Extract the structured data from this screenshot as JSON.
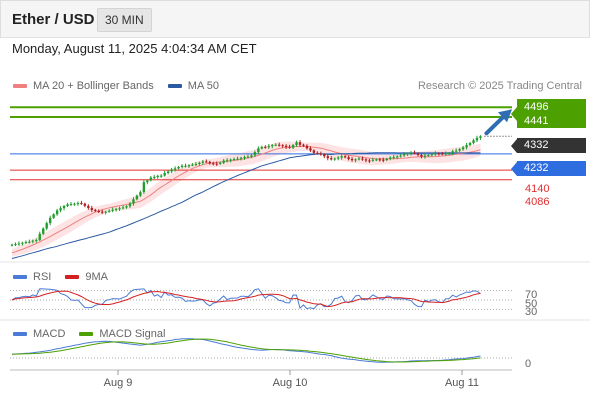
{
  "header": {
    "title": "Ether / USD",
    "timeframe": "30 MIN"
  },
  "datetime": "Monday, August 11, 2025 4:04:34 AM CET",
  "legend": {
    "ma20_label": "MA 20 + Bollinger Bands",
    "ma50_label": "MA 50",
    "research": "Research © 2025 Trading Central"
  },
  "indicators": {
    "rsi_label": "RSI",
    "rsi_ma_label": "9MA",
    "macd_label": "MACD",
    "macd_signal_label": "MACD Signal",
    "rsi_levels": [
      "70",
      "50",
      "30"
    ],
    "macd_zero": "0"
  },
  "colors": {
    "candle_up": "#1f9d2e",
    "candle_down": "#b01e1e",
    "ma20": "#f08080",
    "ma50": "#2b5aa3",
    "bollinger_fill": "#fde3e3",
    "resistance": "#4ca000",
    "pivot": "#2e6de0",
    "support": "#e23030",
    "last_price": "#333333",
    "rsi": "#4a7bd6",
    "rsi_ma": "#d42020",
    "macd": "#4a7bd6",
    "macd_signal": "#4ca000"
  },
  "chart_data": {
    "type": "candlestick",
    "title": "Ether / USD",
    "interval": "30 MIN",
    "y_range": [
      3620,
      4560
    ],
    "x_range": [
      "Aug 8 17:00",
      "Aug 11 05:30"
    ],
    "x_ticks": [
      "Aug 9",
      "Aug 10",
      "Aug 11"
    ],
    "x_tick_positions": [
      28,
      76,
      124
    ],
    "levels": {
      "resistance": [
        4496,
        4441
      ],
      "pivot": 4232,
      "support": [
        4140,
        4086
      ],
      "last_price": 4332
    },
    "close_prices": [
      3718,
      3722,
      3725,
      3729,
      3733,
      3735,
      3741,
      3744,
      3780,
      3810,
      3840,
      3870,
      3890,
      3912,
      3925,
      3937,
      3946,
      3948,
      3950,
      3954,
      3950,
      3938,
      3926,
      3915,
      3909,
      3905,
      3901,
      3905,
      3910,
      3916,
      3921,
      3924,
      3929,
      3936,
      3951,
      3975,
      3996,
      4016,
      4072,
      4082,
      4098,
      4101,
      4108,
      4109,
      4124,
      4133,
      4144,
      4150,
      4158,
      4165,
      4165,
      4168,
      4171,
      4175,
      4182,
      4189,
      4187,
      4179,
      4177,
      4176,
      4182,
      4194,
      4196,
      4200,
      4203,
      4205,
      4210,
      4214,
      4216,
      4224,
      4242,
      4263,
      4272,
      4270,
      4276,
      4282,
      4284,
      4281,
      4278,
      4272,
      4267,
      4282,
      4298,
      4284,
      4278,
      4264,
      4252,
      4238,
      4233,
      4230,
      4219,
      4208,
      4201,
      4206,
      4211,
      4219,
      4213,
      4203,
      4197,
      4201,
      4206,
      4201,
      4195,
      4193,
      4199,
      4201,
      4199,
      4197,
      4204,
      4211,
      4214,
      4218,
      4223,
      4230,
      4235,
      4239,
      4235,
      4226,
      4217,
      4223,
      4225,
      4230,
      4235,
      4234,
      4230,
      4234,
      4237,
      4247,
      4251,
      4259,
      4269,
      4282,
      4294,
      4309,
      4323,
      4332
    ],
    "ma20": [
      3672,
      3678,
      3685,
      3692,
      3700,
      3708,
      3716,
      3725,
      3734,
      3744,
      3754,
      3764,
      3775,
      3786,
      3797,
      3808,
      3819,
      3830,
      3842,
      3853,
      3864,
      3874,
      3884,
      3893,
      3902,
      3909,
      3916,
      3922,
      3927,
      3931,
      3935,
      3939,
      3942,
      3946,
      3950,
      3954,
      3959,
      3964,
      3975,
      3988,
      4000,
      4015,
      4031,
      4044,
      4056,
      4069,
      4081,
      4095,
      4107,
      4118,
      4129,
      4140,
      4150,
      4157,
      4165,
      4171,
      4176,
      4179,
      4181,
      4184,
      4186,
      4188,
      4191,
      4193,
      4195,
      4198,
      4201,
      4205,
      4209,
      4212,
      4218,
      4224,
      4230,
      4237,
      4245,
      4252,
      4258,
      4263,
      4266,
      4269,
      4271,
      4272,
      4274,
      4274,
      4274,
      4274,
      4272,
      4270,
      4267,
      4264,
      4260,
      4254,
      4249,
      4243,
      4238,
      4232,
      4228,
      4224,
      4222,
      4220,
      4216,
      4213,
      4210,
      4208,
      4206,
      4205,
      4204,
      4204,
      4205,
      4205,
      4205,
      4206,
      4207,
      4208,
      4210,
      4213,
      4214,
      4215,
      4215,
      4215,
      4216,
      4216,
      4217,
      4218,
      4220,
      4222,
      4224,
      4227,
      4230,
      4232,
      4233,
      4237,
      4241,
      4245,
      4250,
      4255
    ],
    "ma50": [
      3640,
      3645,
      3650,
      3655,
      3661,
      3667,
      3672,
      3677,
      3683,
      3689,
      3695,
      3700,
      3704,
      3709,
      3715,
      3720,
      3726,
      3731,
      3736,
      3742,
      3747,
      3751,
      3757,
      3762,
      3767,
      3773,
      3778,
      3783,
      3789,
      3796,
      3804,
      3811,
      3818,
      3825,
      3833,
      3841,
      3849,
      3857,
      3865,
      3873,
      3882,
      3890,
      3899,
      3908,
      3916,
      3924,
      3933,
      3941,
      3950,
      3958,
      3968,
      3979,
      3990,
      4000,
      4008,
      4017,
      4027,
      4037,
      4047,
      4056,
      4066,
      4075,
      4083,
      4092,
      4101,
      4110,
      4117,
      4125,
      4133,
      4141,
      4149,
      4157,
      4165,
      4170,
      4176,
      4181,
      4187,
      4193,
      4198,
      4204,
      4210,
      4213,
      4217,
      4219,
      4222,
      4224,
      4227,
      4229,
      4232,
      4233,
      4230,
      4230,
      4229,
      4231,
      4233,
      4233,
      4233,
      4233,
      4234,
      4235,
      4236,
      4236,
      4236,
      4237,
      4238,
      4239,
      4239,
      4239,
      4239,
      4239,
      4239,
      4238,
      4238,
      4238,
      4238,
      4238,
      4238,
      4238,
      4238,
      4238,
      4238,
      4238,
      4238,
      4238,
      4238,
      4238,
      4238,
      4238,
      4238,
      4238,
      4238,
      4238,
      4238,
      4238,
      4238,
      4238
    ]
  }
}
